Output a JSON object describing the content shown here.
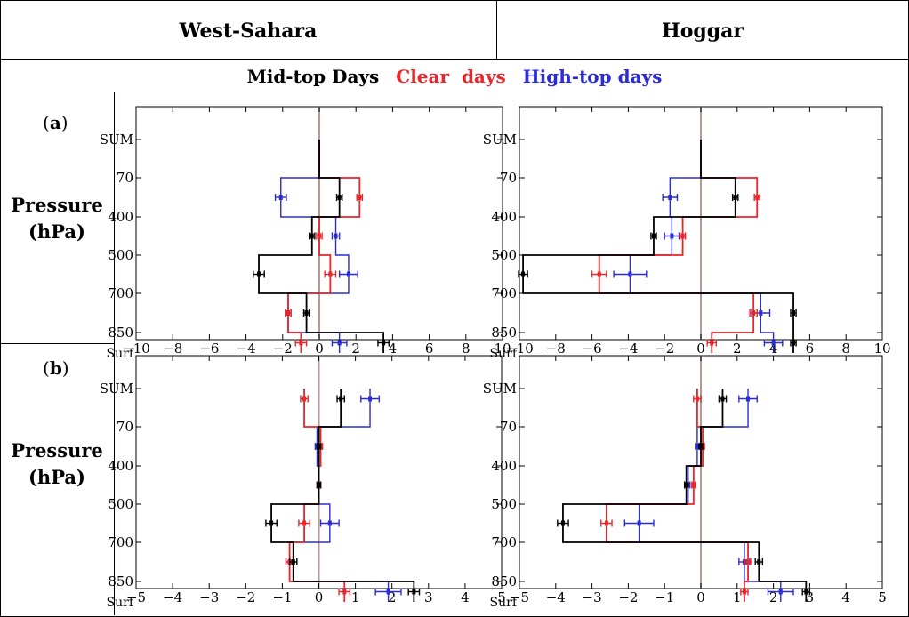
{
  "columns": [
    "West-Sahara",
    "Hoggar"
  ],
  "legend": [
    {
      "label": "Mid-top Days",
      "color": "#000000"
    },
    {
      "label": "Clear  days",
      "color": "#e8262b"
    },
    {
      "label": "High-top days",
      "color": "#2b2bd8"
    }
  ],
  "row_labels": [
    {
      "panel": "(a)",
      "ylabel": [
        "Pressure",
        "(hPa)"
      ]
    },
    {
      "panel": "(b)",
      "ylabel": [
        "Pressure",
        "(hPa)"
      ]
    }
  ],
  "chart_data": [
    {
      "type": "line",
      "id": "a-west",
      "column": "West-Sahara",
      "row": "(a)",
      "levels": [
        "SUM",
        "70",
        "400",
        "500",
        "700",
        "850",
        "Surf"
      ],
      "xlim": [
        -10,
        10
      ],
      "xticks": [
        -10,
        -8,
        -6,
        -4,
        -2,
        0,
        2,
        4,
        6,
        8,
        10
      ],
      "series": [
        {
          "name": "Mid-top Days",
          "color": "#000000",
          "layers": [
            1.1,
            -0.4,
            -3.3,
            -0.7,
            3.5
          ],
          "sum": 0,
          "err": [
            0.15,
            0.15,
            0.3,
            0.15,
            0.3
          ]
        },
        {
          "name": "Clear  days",
          "color": "#e8262b",
          "layers": [
            2.2,
            0.0,
            0.6,
            -1.7,
            -1.0
          ],
          "sum": 0,
          "err": [
            0.15,
            0.15,
            0.3,
            0.15,
            0.3
          ]
        },
        {
          "name": "High-top days",
          "color": "#2b2bd8",
          "layers": [
            -2.1,
            0.9,
            1.6,
            -1.7,
            1.1
          ],
          "sum": 0,
          "err": [
            0.3,
            0.2,
            0.5,
            0.15,
            0.4
          ]
        }
      ]
    },
    {
      "type": "line",
      "id": "a-hoggar",
      "column": "Hoggar",
      "row": "(a)",
      "levels": [
        "SUM",
        "70",
        "400",
        "500",
        "700",
        "850",
        "Surf"
      ],
      "xlim": [
        -10,
        10
      ],
      "xticks": [
        -10,
        -8,
        -6,
        -4,
        -2,
        0,
        2,
        4,
        6,
        8,
        10
      ],
      "series": [
        {
          "name": "Mid-top Days",
          "color": "#000000",
          "layers": [
            1.9,
            -2.6,
            -9.8,
            5.1,
            5.1
          ],
          "sum": 0,
          "err": [
            0.15,
            0.15,
            0.25,
            0.15,
            0.15
          ]
        },
        {
          "name": "Clear  days",
          "color": "#e8262b",
          "layers": [
            3.1,
            -1.0,
            -5.6,
            2.9,
            0.6
          ],
          "sum": 0,
          "err": [
            0.15,
            0.15,
            0.4,
            0.2,
            0.25
          ]
        },
        {
          "name": "High-top days",
          "color": "#2b2bd8",
          "layers": [
            -1.7,
            -1.6,
            -3.9,
            3.3,
            4.0
          ],
          "sum": 0,
          "err": [
            0.4,
            0.4,
            0.9,
            0.5,
            0.5
          ]
        }
      ]
    },
    {
      "type": "line",
      "id": "b-west",
      "column": "West-Sahara",
      "row": "(b)",
      "levels": [
        "SUM",
        "70",
        "400",
        "500",
        "700",
        "850",
        "Surf"
      ],
      "xlim": [
        -5,
        5
      ],
      "xticks": [
        -5,
        -4,
        -3,
        -2,
        -1,
        0,
        1,
        2,
        3,
        4,
        5
      ],
      "series": [
        {
          "name": "Mid-top Days",
          "color": "#000000",
          "layers": [
            0.0,
            0.0,
            -1.3,
            -0.7,
            2.6
          ],
          "sum": 0.6,
          "err": [
            0.05,
            0.05,
            0.15,
            0.1,
            0.15
          ]
        },
        {
          "name": "Clear  days",
          "color": "#e8262b",
          "layers": [
            0.05,
            0.0,
            -0.4,
            -0.8,
            0.7
          ],
          "sum": -0.4,
          "err": [
            0.05,
            0.05,
            0.15,
            0.1,
            0.15
          ]
        },
        {
          "name": "High-top days",
          "color": "#2b2bd8",
          "layers": [
            -0.05,
            0.0,
            0.3,
            -0.8,
            1.9
          ],
          "sum": 1.4,
          "err": [
            0.05,
            0.05,
            0.25,
            0.1,
            0.35
          ]
        }
      ]
    },
    {
      "type": "line",
      "id": "b-hoggar",
      "column": "Hoggar",
      "row": "(b)",
      "levels": [
        "SUM",
        "70",
        "400",
        "500",
        "700",
        "850",
        "Surf"
      ],
      "xlim": [
        -5,
        5
      ],
      "xticks": [
        -5,
        -4,
        -3,
        -2,
        -1,
        0,
        1,
        2,
        3,
        4,
        5
      ],
      "series": [
        {
          "name": "Mid-top Days",
          "color": "#000000",
          "layers": [
            0.0,
            -0.4,
            -3.8,
            1.6,
            2.9
          ],
          "sum": 0.6,
          "err": [
            0.05,
            0.05,
            0.15,
            0.1,
            0.1
          ]
        },
        {
          "name": "Clear  days",
          "color": "#e8262b",
          "layers": [
            0.05,
            -0.2,
            -2.6,
            1.3,
            1.2
          ],
          "sum": -0.1,
          "err": [
            0.05,
            0.05,
            0.15,
            0.1,
            0.1
          ]
        },
        {
          "name": "High-top days",
          "color": "#2b2bd8",
          "layers": [
            -0.1,
            -0.35,
            -1.7,
            1.2,
            2.2
          ],
          "sum": 1.3,
          "err": [
            0.05,
            0.05,
            0.4,
            0.15,
            0.35
          ]
        }
      ]
    }
  ]
}
